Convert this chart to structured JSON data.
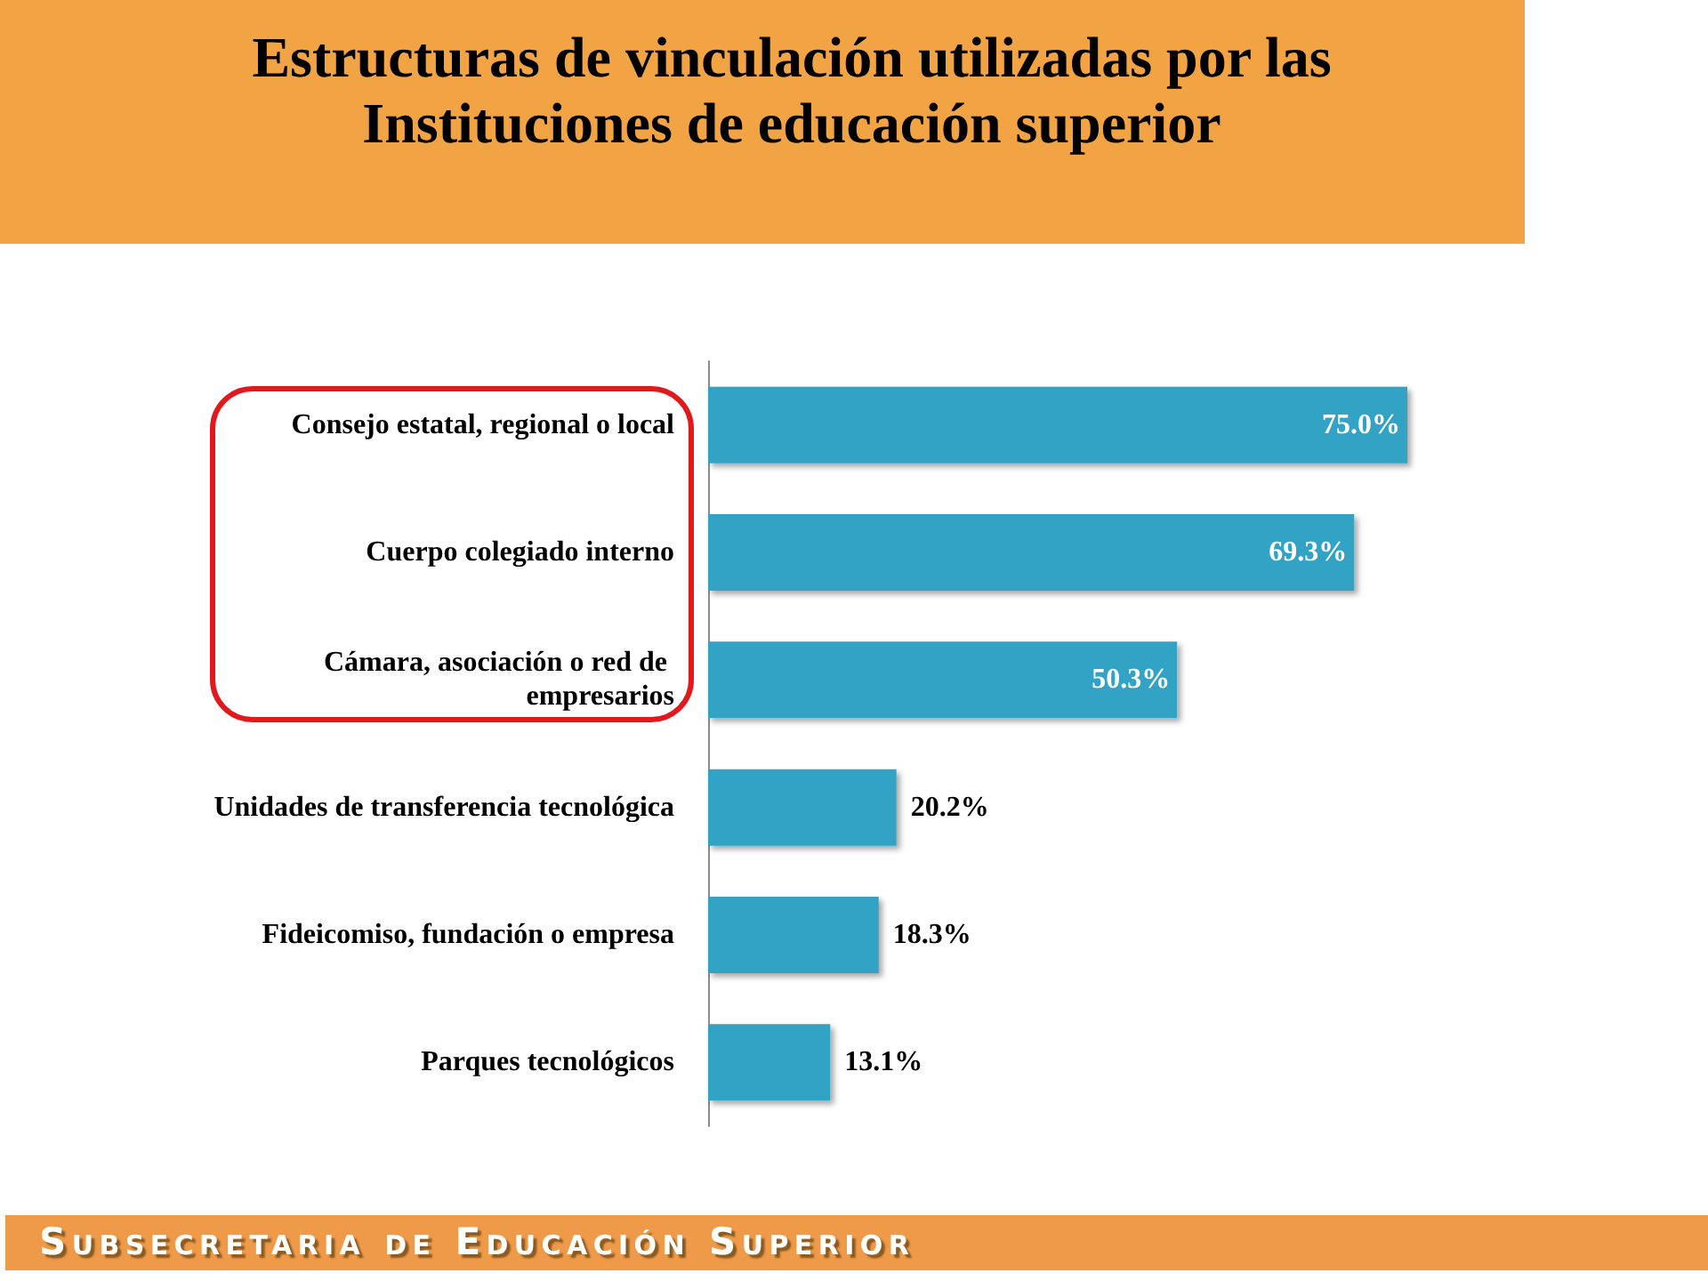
{
  "chart_data": {
    "type": "bar",
    "orientation": "horizontal",
    "title": "Estructuras de vinculación utilizadas por las Instituciones de educación superior",
    "categories": [
      "Consejo estatal, regional o local",
      "Cuerpo colegiado interno",
      "Cámara, asociación o red de empresarios",
      "Unidades de transferencia tecnológica",
      "Fideicomiso, fundación o empresa",
      "Parques tecnológicos"
    ],
    "values": [
      75.0,
      69.3,
      50.3,
      20.2,
      18.3,
      13.1
    ],
    "value_labels": [
      "75.0%",
      "69.3%",
      "50.3%",
      "20.2%",
      "18.3%",
      "13.1%"
    ],
    "color": "#31a3c4",
    "tick_labels": "y",
    "annotations": [
      "Subsecretaria de Educación Superior"
    ]
  }
}
